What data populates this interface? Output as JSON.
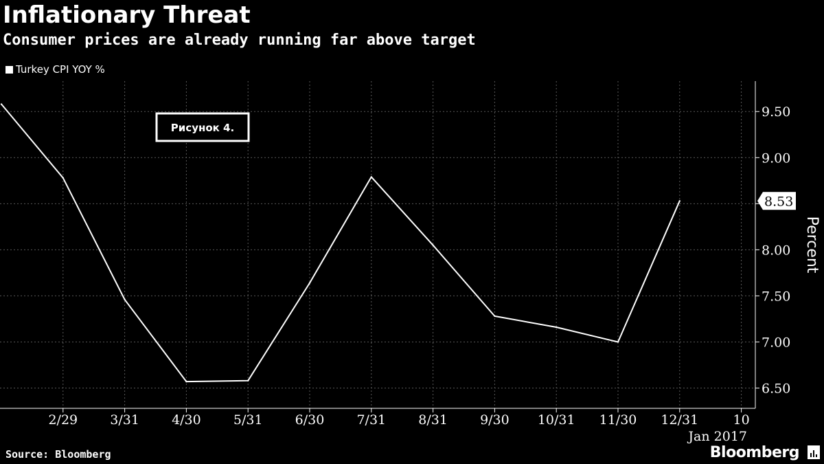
{
  "header": {
    "title": "Inflationary Threat",
    "subtitle": "Consumer prices are already running far above target"
  },
  "legend": {
    "label": "Turkey CPI YOY %"
  },
  "annotation": {
    "text": "Рисунок 4."
  },
  "footer": {
    "source": "Source: Bloomberg",
    "brand": "Bloomberg"
  },
  "chart_data": {
    "type": "line",
    "series": [
      {
        "name": "Turkey CPI YOY %",
        "x": [
          "1/31/2016",
          "2/29/2016",
          "3/31/2016",
          "4/30/2016",
          "5/31/2016",
          "6/30/2016",
          "7/31/2016",
          "8/31/2016",
          "9/30/2016",
          "10/31/2016",
          "11/30/2016",
          "12/31/2016"
        ],
        "values": [
          9.58,
          8.78,
          7.46,
          6.57,
          6.58,
          7.64,
          8.79,
          8.05,
          7.28,
          7.16,
          7.0,
          8.53
        ]
      }
    ],
    "x_tick_labels": [
      "2/29",
      "3/31",
      "4/30",
      "5/31",
      "6/30",
      "7/31",
      "8/31",
      "9/30",
      "10/31",
      "11/30",
      "12/31",
      "10"
    ],
    "x_secondary_label": "Jan 2017",
    "y_ticks": [
      6.5,
      7.0,
      7.5,
      8.0,
      8.5,
      9.0,
      9.5
    ],
    "y_tick_labels": [
      "6.50",
      "7.00",
      "7.50",
      "8.00",
      "8.50",
      "9.00",
      "9.50"
    ],
    "ylabel": "Percent",
    "last_value_label": "8.53",
    "ylim": [
      6.28,
      9.83
    ],
    "y_axis_side": "right",
    "grid": true,
    "colors": {
      "background": "#000000",
      "line": "#ffffff",
      "grid": "#5a5a5a"
    }
  }
}
